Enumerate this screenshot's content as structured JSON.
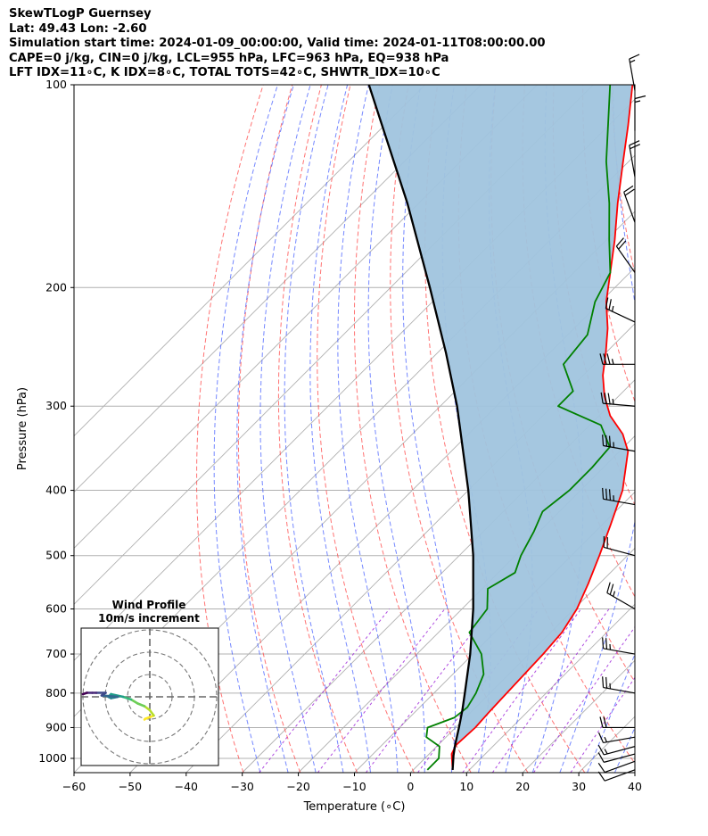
{
  "header": {
    "line1": "SkewTLogP Guernsey",
    "line2": "Lat: 49.43   Lon: -2.60",
    "line3": "Simulation start time: 2024-01-09_00:00:00, Valid time: 2024-01-11T08:00:00.00",
    "line4": "CAPE=0 j/kg, CIN=0 j/kg, LCL=955 hPa, LFC=963 hPa, EQ=938 hPa",
    "line5": "LFT IDX=11∘C, K IDX=8∘C, TOTAL TOTS=42∘C, SHWTR_IDX=10∘C"
  },
  "chart_data": [
    {
      "type": "line",
      "xlabel": "Temperature (∘C)",
      "ylabel": "Pressure (hPa)",
      "xlim": [
        -60,
        40
      ],
      "ylim": [
        1050,
        100
      ],
      "yscale": "log",
      "skew_degrees": 45,
      "x_ticks": [
        -60,
        -50,
        -40,
        -30,
        -20,
        -10,
        0,
        10,
        20,
        30,
        40
      ],
      "y_ticks": [
        100,
        200,
        300,
        400,
        500,
        600,
        700,
        800,
        900,
        1000
      ],
      "grid": true,
      "series": [
        {
          "role": "temperature",
          "color": "#ff0000",
          "points": [
            [
              1040,
              7.0
            ],
            [
              985,
              4.0
            ],
            [
              955,
              3.2
            ],
            [
              900,
              3.5
            ],
            [
              850,
              3.2
            ],
            [
              800,
              3.0
            ],
            [
              700,
              2.5
            ],
            [
              650,
              2.0
            ],
            [
              600,
              0.5
            ],
            [
              550,
              -2.0
            ],
            [
              500,
              -5.0
            ],
            [
              450,
              -8.5
            ],
            [
              400,
              -12.5
            ],
            [
              350,
              -18.5
            ],
            [
              330,
              -22.5
            ],
            [
              310,
              -28.0
            ],
            [
              290,
              -32.5
            ],
            [
              270,
              -36.5
            ],
            [
              250,
              -40.0
            ],
            [
              230,
              -44.0
            ],
            [
              210,
              -49.0
            ],
            [
              190,
              -53.5
            ],
            [
              170,
              -58.5
            ],
            [
              150,
              -64.5
            ],
            [
              130,
              -71.0
            ],
            [
              115,
              -76.5
            ],
            [
              100,
              -83.0
            ]
          ]
        },
        {
          "role": "dewpoint",
          "color": "#008000",
          "points": [
            [
              1040,
              2.5
            ],
            [
              1000,
              2.5
            ],
            [
              960,
              0.5
            ],
            [
              930,
              -3.5
            ],
            [
              900,
              -5.0
            ],
            [
              870,
              -2.0
            ],
            [
              840,
              -1.5
            ],
            [
              800,
              -2.5
            ],
            [
              750,
              -4.5
            ],
            [
              700,
              -8.5
            ],
            [
              650,
              -14.5
            ],
            [
              600,
              -15.5
            ],
            [
              560,
              -19.0
            ],
            [
              530,
              -17.0
            ],
            [
              500,
              -19.0
            ],
            [
              460,
              -21.0
            ],
            [
              430,
              -23.0
            ],
            [
              400,
              -22.0
            ],
            [
              370,
              -22.0
            ],
            [
              345,
              -22.5
            ],
            [
              320,
              -28.0
            ],
            [
              300,
              -39.0
            ],
            [
              285,
              -39.0
            ],
            [
              260,
              -45.5
            ],
            [
              235,
              -46.5
            ],
            [
              210,
              -51.0
            ],
            [
              190,
              -53.5
            ],
            [
              170,
              -59.5
            ],
            [
              150,
              -66.0
            ],
            [
              130,
              -74.0
            ],
            [
              100,
              -87.0
            ]
          ]
        },
        {
          "role": "parcel-profile",
          "color": "#000000",
          "points": [
            [
              1040,
              7.0
            ],
            [
              990,
              4.6
            ],
            [
              955,
              3.0
            ],
            [
              900,
              0.6
            ],
            [
              850,
              -1.8
            ],
            [
              800,
              -4.5
            ],
            [
              700,
              -10.5
            ],
            [
              600,
              -18.0
            ],
            [
              500,
              -27.5
            ],
            [
              400,
              -40.0
            ],
            [
              300,
              -57.0
            ],
            [
              250,
              -68.5
            ],
            [
              200,
              -83.0
            ],
            [
              150,
              -102.0
            ],
            [
              100,
              -130.0
            ]
          ]
        }
      ],
      "shading": {
        "between": [
          "temperature",
          "parcel-profile"
        ],
        "color": "#a0c4de"
      },
      "reference_lines": {
        "isotherms_color": "#b0b0b0",
        "dry_adiabats_color": "#ff4444",
        "moist_adiabats_color": "#3a56ff",
        "mixing_ratio_color": "#9b1ed8"
      },
      "wind_barbs": [
        {
          "p": 1040,
          "dir": 250,
          "speed": 12
        },
        {
          "p": 1010,
          "dir": 250,
          "speed": 12
        },
        {
          "p": 985,
          "dir": 255,
          "speed": 12
        },
        {
          "p": 960,
          "dir": 255,
          "speed": 15
        },
        {
          "p": 930,
          "dir": 260,
          "speed": 17
        },
        {
          "p": 900,
          "dir": 270,
          "speed": 20
        },
        {
          "p": 800,
          "dir": 280,
          "speed": 25
        },
        {
          "p": 700,
          "dir": 280,
          "speed": 25
        },
        {
          "p": 600,
          "dir": 300,
          "speed": 25
        },
        {
          "p": 500,
          "dir": 285,
          "speed": 20
        },
        {
          "p": 420,
          "dir": 280,
          "speed": 35
        },
        {
          "p": 350,
          "dir": 280,
          "speed": 35
        },
        {
          "p": 300,
          "dir": 275,
          "speed": 35
        },
        {
          "p": 260,
          "dir": 270,
          "speed": 35
        },
        {
          "p": 225,
          "dir": 295,
          "speed": 25
        },
        {
          "p": 190,
          "dir": 325,
          "speed": 20
        },
        {
          "p": 160,
          "dir": 340,
          "speed": 20
        },
        {
          "p": 137,
          "dir": 350,
          "speed": 20
        },
        {
          "p": 117,
          "dir": 360,
          "speed": 15
        },
        {
          "p": 102,
          "dir": 350,
          "speed": 15
        }
      ]
    },
    {
      "type": "scatter",
      "title": "Wind Profile",
      "subtitle": "10m/s increment",
      "ring_speeds": [
        10,
        20,
        30
      ],
      "hodograph_uv": [
        [
          -4,
          -17
        ],
        [
          -3.5,
          -16.5
        ],
        [
          3,
          -14
        ],
        [
          0,
          -10
        ],
        [
          -4,
          -7
        ],
        [
          -9,
          -5
        ],
        [
          -14,
          -2
        ],
        [
          -20,
          0
        ],
        [
          -29,
          2
        ],
        [
          -31,
          0
        ],
        [
          -29,
          -1
        ],
        [
          -24,
          0
        ],
        [
          -36,
          1
        ],
        [
          -33,
          3
        ],
        [
          -40,
          3
        ],
        [
          -43,
          3
        ],
        [
          -47,
          3
        ],
        [
          -50,
          2
        ]
      ]
    }
  ]
}
